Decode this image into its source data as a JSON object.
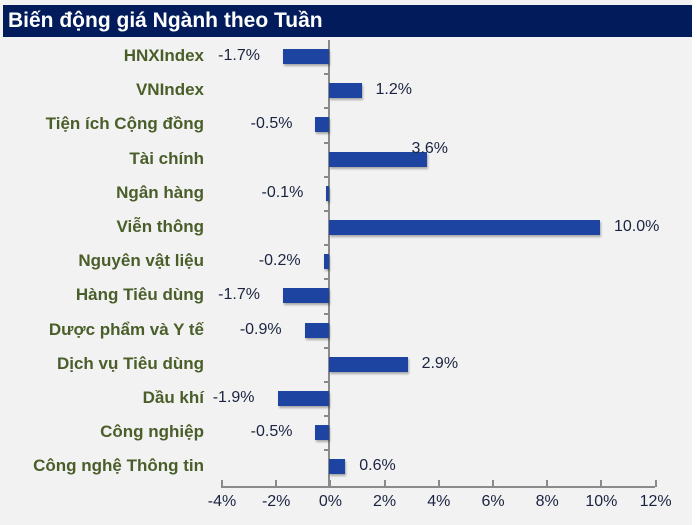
{
  "title": "Biến động giá Ngành theo Tuần",
  "colors": {
    "title_bg": "#021b5a",
    "title_text": "#ffffff",
    "bar": "#1c44a0",
    "category_text": "#4a5e2a",
    "value_text": "#1a2440",
    "background": "#f2f2f2",
    "axis": "#8a8a8a"
  },
  "chart_data": {
    "type": "bar",
    "orientation": "horizontal",
    "title": "Biến động giá Ngành theo Tuần",
    "categories": [
      "HNXIndex",
      "VNIndex",
      "Tiện ích Cộng đồng",
      "Tài chính",
      "Ngân hàng",
      "Viễn thông",
      "Nguyên vật liệu",
      "Hàng Tiêu dùng",
      "Dược phẩm và Y tế",
      "Dịch vụ Tiêu dùng",
      "Dầu khí",
      "Công nghiệp",
      "Công nghệ Thông tin"
    ],
    "values": [
      -1.7,
      1.2,
      -0.5,
      3.6,
      -0.1,
      10.0,
      -0.2,
      -1.7,
      -0.9,
      2.9,
      -1.9,
      -0.5,
      0.6
    ],
    "value_labels": [
      "-1.7%",
      "1.2%",
      "-0.5%",
      "3.6%",
      "-0.1%",
      "10.0%",
      "-0.2%",
      "-1.7%",
      "-0.9%",
      "2.9%",
      "-1.9%",
      "-0.5%",
      "0.6%"
    ],
    "xlabel": "",
    "ylabel": "",
    "xlim": [
      -4,
      12
    ],
    "xticks": [
      "-4%",
      "-2%",
      "0%",
      "2%",
      "4%",
      "6%",
      "8%",
      "10%",
      "12%"
    ],
    "grid": false,
    "legend": "none"
  }
}
